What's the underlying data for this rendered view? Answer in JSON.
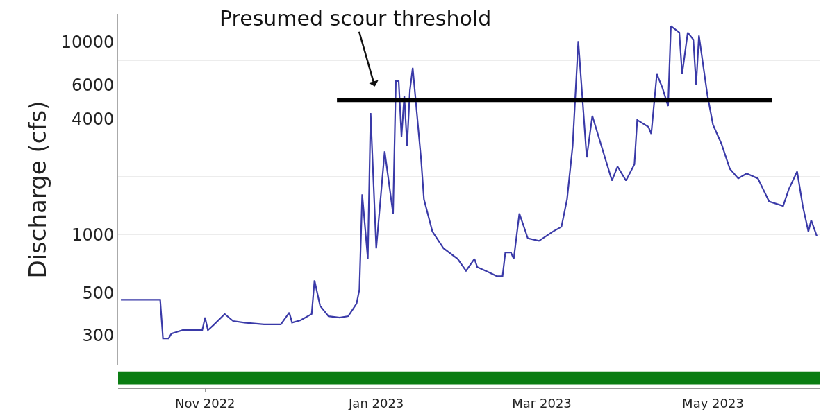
{
  "chart_data": {
    "type": "line",
    "ylabel": "Discharge (cfs)",
    "log": true,
    "grid": "y",
    "xlim": [
      "2022-10-01",
      "2023-06-08"
    ],
    "xticks": [
      {
        "value": "2022-11-01",
        "label": "Nov 2022"
      },
      {
        "value": "2023-01-01",
        "label": "Jan 2023"
      },
      {
        "value": "2023-03-01",
        "label": "Mar 2023"
      },
      {
        "value": "2023-05-01",
        "label": "May 2023"
      }
    ],
    "ylim": [
      210,
      14000
    ],
    "yticks": [
      300,
      500,
      1000,
      {
        "value": 2000,
        "label": null
      },
      4000,
      6000,
      {
        "value": 8000,
        "label": null
      },
      10000
    ],
    "x": [
      "2022-10-02",
      "2022-10-16",
      "2022-10-17",
      "2022-10-19",
      "2022-10-20",
      "2022-10-24",
      "2022-10-31",
      "2022-11-01",
      "2022-11-02",
      "2022-11-04",
      "2022-11-08",
      "2022-11-11",
      "2022-11-15",
      "2022-11-22",
      "2022-11-28",
      "2022-12-01",
      "2022-12-02",
      "2022-12-05",
      "2022-12-09",
      "2022-12-10",
      "2022-12-12",
      "2022-12-15",
      "2022-12-19",
      "2022-12-22",
      "2022-12-25",
      "2022-12-26",
      "2022-12-27",
      "2022-12-29",
      "2022-12-30",
      "2023-01-01",
      "2023-01-04",
      "2023-01-07",
      "2023-01-08",
      "2023-01-09",
      "2023-01-10",
      "2023-01-11",
      "2023-01-12",
      "2023-01-13",
      "2023-01-14",
      "2023-01-17",
      "2023-01-18",
      "2023-01-21",
      "2023-01-25",
      "2023-01-30",
      "2023-02-02",
      "2023-02-05",
      "2023-02-06",
      "2023-02-10",
      "2023-02-13",
      "2023-02-15",
      "2023-02-16",
      "2023-02-18",
      "2023-02-19",
      "2023-02-21",
      "2023-02-24",
      "2023-02-28",
      "2023-03-05",
      "2023-03-08",
      "2023-03-10",
      "2023-03-12",
      "2023-03-14",
      "2023-03-17",
      "2023-03-19",
      "2023-03-22",
      "2023-03-26",
      "2023-03-28",
      "2023-03-31",
      "2023-04-03",
      "2023-04-04",
      "2023-04-08",
      "2023-04-09",
      "2023-04-11",
      "2023-04-13",
      "2023-04-15",
      "2023-04-16",
      "2023-04-19",
      "2023-04-20",
      "2023-04-22",
      "2023-04-24",
      "2023-04-25",
      "2023-04-26",
      "2023-04-29",
      "2023-05-01",
      "2023-05-04",
      "2023-05-07",
      "2023-05-10",
      "2023-05-13",
      "2023-05-17",
      "2023-05-21",
      "2023-05-26",
      "2023-05-28",
      "2023-05-31",
      "2023-06-02",
      "2023-06-04",
      "2023-06-05",
      "2023-06-07"
    ],
    "series": [
      {
        "color": "#3a3aa8",
        "values": [
          460,
          460,
          290,
          290,
          307,
          320,
          320,
          372,
          320,
          340,
          388,
          357,
          350,
          343,
          343,
          395,
          350,
          360,
          388,
          580,
          428,
          378,
          372,
          378,
          440,
          520,
          1620,
          750,
          4280,
          850,
          2710,
          1290,
          6280,
          6280,
          3230,
          5270,
          2900,
          5630,
          7350,
          2450,
          1530,
          1040,
          850,
          750,
          650,
          750,
          680,
          640,
          610,
          610,
          810,
          810,
          750,
          1290,
          960,
          930,
          1040,
          1100,
          1530,
          2900,
          10100,
          2520,
          4140,
          2970,
          1910,
          2260,
          1910,
          2320,
          3940,
          3630,
          3340,
          6820,
          5780,
          4650,
          12100,
          11200,
          6820,
          11200,
          10300,
          5980,
          10800,
          5320,
          3720,
          2970,
          2200,
          1960,
          2080,
          1960,
          1490,
          1410,
          1720,
          2130,
          1410,
          1040,
          1190,
          985
        ]
      },
      {
        "type": "line",
        "color": "#000000",
        "x": [
          "2022-12-18",
          "2023-05-22"
        ],
        "values": [
          5000,
          5000
        ]
      }
    ],
    "annotations": [
      "Presumed scour threshold"
    ]
  }
}
